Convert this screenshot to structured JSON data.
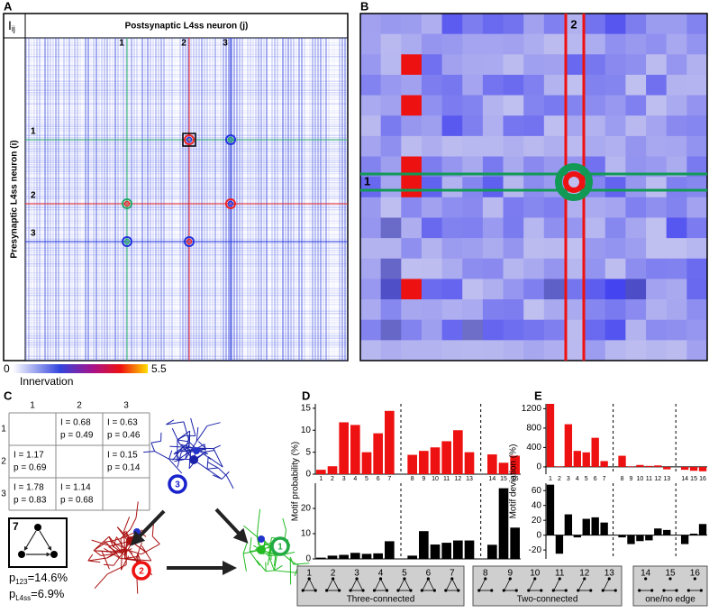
{
  "panel_labels": [
    "A",
    "B",
    "C",
    "D",
    "E"
  ],
  "panel_a": {
    "corner": "I",
    "corner_sub": "ij",
    "x_title": "Postsynaptic L4ss neuron (j)",
    "y_title": "Presynaptic L4ss neuron (i)",
    "col_markers": [
      "1",
      "2",
      "3"
    ],
    "row_markers": [
      "1",
      "2",
      "3"
    ],
    "colorbar": {
      "min": 0,
      "max": 5.5,
      "label": "Innervation"
    }
  },
  "panel_b": {
    "col_marker": "2",
    "row_marker": "1"
  },
  "panel_c": {
    "headers": [
      "1",
      "2",
      "3"
    ],
    "row_headers": [
      "1",
      "2",
      "3"
    ],
    "cells": [
      [
        null,
        {
          "I": "I = 0.68",
          "p": "p = 0.49"
        },
        {
          "I": "I = 0.63",
          "p": "p = 0.46"
        }
      ],
      [
        {
          "I": "I = 1.17",
          "p": "p = 0.69"
        },
        null,
        {
          "I": "I = 0.15",
          "p": "p = 0.14"
        }
      ],
      [
        {
          "I": "I = 1.78",
          "p": "p = 0.83"
        },
        {
          "I": "I = 1.14",
          "p": "p = 0.68"
        },
        null
      ]
    ],
    "motif": "7",
    "p123": {
      "sym": "p",
      "sub": "123",
      "text": "=14.6%"
    },
    "pL4ss": {
      "sym": "p",
      "sub": "L4ss",
      "text": "=6.9%"
    },
    "neurons": [
      "3",
      "2",
      "1"
    ]
  },
  "chart_data": [
    {
      "type": "bar",
      "ylabel": "Motif probability (%)",
      "color": "#ee1111",
      "categories": [
        "1",
        "2",
        "3",
        "4",
        "5",
        "6",
        "7",
        "8",
        "9",
        "10",
        "11",
        "12",
        "13",
        "14",
        "15",
        "16"
      ],
      "values": [
        1.0,
        1.8,
        11.8,
        11.2,
        5.0,
        9.3,
        14.4,
        4.4,
        5.3,
        6.1,
        7.5,
        10.0,
        5.0,
        4.5,
        2.6,
        4.2
      ],
      "ylim": [
        0,
        16
      ],
      "yticks": [
        0,
        5,
        10,
        15
      ]
    },
    {
      "type": "bar",
      "color": "#000000",
      "values": [
        0.5,
        1.3,
        1.6,
        2.4,
        2.0,
        2.2,
        7.0,
        1.3,
        11.0,
        5.7,
        6.4,
        7.3,
        7.3,
        5.6,
        28.0,
        12.4
      ],
      "ylim": [
        0,
        30
      ],
      "yticks": [
        0,
        10,
        20
      ]
    },
    {
      "type": "bar",
      "ylabel": "Motif deviation (%)",
      "color": "#ee1111",
      "categories": [
        "1",
        "2",
        "3",
        "4",
        "5",
        "6",
        "7",
        "8",
        "9",
        "10",
        "11",
        "12",
        "13",
        "14",
        "15",
        "16"
      ],
      "values": [
        1300,
        10,
        880,
        330,
        300,
        600,
        120,
        230,
        10,
        40,
        20,
        30,
        -50,
        -60,
        -80,
        -90
      ],
      "ylim": [
        -150,
        1300
      ],
      "yticks": [
        0,
        400,
        800,
        1200
      ]
    },
    {
      "type": "bar",
      "color": "#000000",
      "values": [
        68,
        -25,
        28,
        -3,
        22,
        24,
        17,
        -3,
        -12,
        -8,
        -7,
        9,
        7,
        -12,
        2,
        15
      ],
      "ylim": [
        -32,
        70
      ],
      "yticks": [
        -20,
        0,
        20,
        40,
        60
      ]
    }
  ],
  "motifs": [
    {
      "label": "Three-connected",
      "ids": [
        "1",
        "2",
        "3",
        "4",
        "5",
        "6",
        "7"
      ]
    },
    {
      "label": "Two-connected",
      "ids": [
        "8",
        "9",
        "10",
        "11",
        "12",
        "13"
      ]
    },
    {
      "label": "one/no edge",
      "ids": [
        "14",
        "15",
        "16"
      ]
    }
  ]
}
